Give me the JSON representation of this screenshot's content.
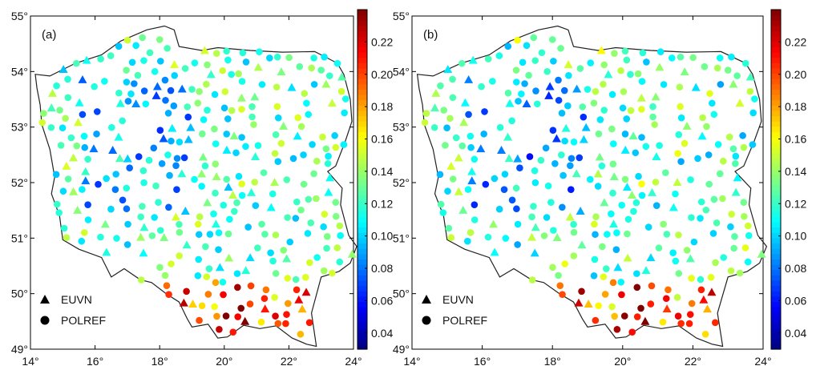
{
  "panels": [
    {
      "label": "(a)",
      "variant": 0
    },
    {
      "label": "(b)",
      "variant": 1
    }
  ],
  "axes": {
    "lon_ticks": [
      "14°",
      "16°",
      "18°",
      "20°",
      "22°",
      "24°"
    ],
    "lat_ticks": [
      "49°",
      "50°",
      "51°",
      "52°",
      "53°",
      "54°",
      "55°"
    ],
    "lon_range": [
      14,
      24
    ],
    "lat_range": [
      49,
      55
    ]
  },
  "colorbar": {
    "ticks": [
      "0.04",
      "0.06",
      "0.08",
      "0.10",
      "0.12",
      "0.14",
      "0.16",
      "0.18",
      "0.20",
      "0.22"
    ],
    "range": [
      0.03,
      0.24
    ],
    "colormap": "jet"
  },
  "legend": {
    "items": [
      {
        "symbol": "triangle",
        "label": "EUVN"
      },
      {
        "symbol": "circle",
        "label": "POLREF"
      }
    ]
  },
  "colors": {
    "border": "#222222",
    "frame": "#000000",
    "point_stroke": "#ffffff"
  }
}
